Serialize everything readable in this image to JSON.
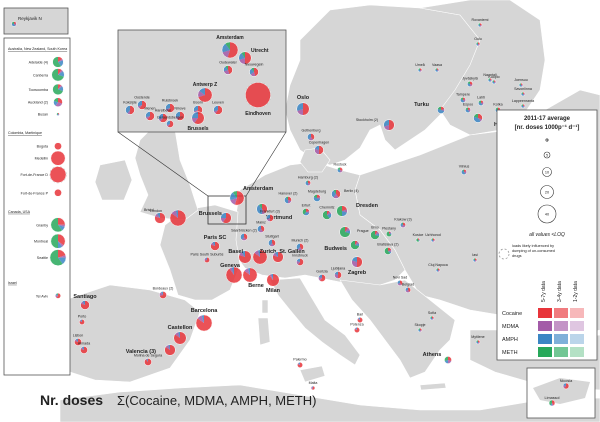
{
  "title": {
    "bold": "Nr. doses",
    "formula": "Σ(Cocaine, MDMA, AMPH, METH)"
  },
  "colors": {
    "sea": "#ffffff",
    "land": "#d6d6d6",
    "border": "#ffffff",
    "cocaine": "#e8343a",
    "mdma": "#a35ba8",
    "amph": "#3b86c4",
    "meth": "#27a85a"
  },
  "legend": {
    "title_line1": "2011-17 average",
    "title_line2": "[nr. doses 1000p⁻¹ d⁻¹]",
    "size_values": [
      "1",
      "5",
      "10",
      "20",
      "40"
    ],
    "loq_label": "all values <LOQ",
    "dumping_label": "loads likely influenced by dumping of un-consumed drugs",
    "period_labels": [
      "5-7y data",
      "3-4y data",
      "1-2y data"
    ],
    "drugs": [
      "Cocaine",
      "MDMA",
      "AMPH",
      "METH"
    ]
  },
  "inset_left": {
    "groups": [
      {
        "heading": "Australia, New Zealand, South Korea",
        "cities": [
          {
            "name": "Adelaide (4)",
            "size": 6,
            "parts": [
              0.15,
              0.05,
              0.2,
              0.6
            ]
          },
          {
            "name": "Canberra",
            "size": 7,
            "parts": [
              0.1,
              0.05,
              0.15,
              0.7
            ]
          },
          {
            "name": "Toowoomba",
            "size": 6,
            "parts": [
              0.1,
              0.05,
              0.15,
              0.7
            ]
          },
          {
            "name": "Auckland (2)",
            "size": 5,
            "parts": [
              0.3,
              0.3,
              0.2,
              0.2
            ]
          },
          {
            "name": "Busan",
            "size": 1.5,
            "parts": [
              0.2,
              0.2,
              0.3,
              0.3
            ]
          }
        ]
      },
      {
        "heading": "Colombia, Martinique",
        "cities": [
          {
            "name": "Bogota",
            "size": 4,
            "parts": [
              1,
              0,
              0,
              0
            ]
          },
          {
            "name": "Medellin",
            "size": 8,
            "parts": [
              1,
              0,
              0,
              0
            ]
          },
          {
            "name": "Fort-de-France D",
            "size": 9,
            "parts": [
              1,
              0,
              0,
              0
            ],
            "dashed": true
          },
          {
            "name": "Fort-de-France P",
            "size": 4,
            "parts": [
              1,
              0,
              0,
              0
            ]
          }
        ]
      },
      {
        "heading": "Canada, USA",
        "cities": [
          {
            "name": "Granby",
            "size": 8,
            "parts": [
              0.25,
              0.05,
              0.1,
              0.6
            ]
          },
          {
            "name": "Montreal",
            "size": 8,
            "parts": [
              0.35,
              0.05,
              0.1,
              0.5
            ]
          },
          {
            "name": "Seattle",
            "size": 9,
            "parts": [
              0.2,
              0.05,
              0.15,
              0.6
            ]
          }
        ]
      },
      {
        "heading": "Israel",
        "cities": [
          {
            "name": "Tel Aviv",
            "size": 3,
            "parts": [
              0.6,
              0.2,
              0.1,
              0.1
            ]
          }
        ]
      }
    ]
  },
  "inset_reykjavik": {
    "city": "Reykjavik N"
  },
  "inset_benelux": {
    "cities": [
      {
        "name": "Amsterdam",
        "size": 9,
        "parts": [
          0.55,
          0.15,
          0.2,
          0.1
        ]
      },
      {
        "name": "Utrecht",
        "size": 7,
        "parts": [
          0.5,
          0.2,
          0.2,
          0.1
        ]
      },
      {
        "name": "Oudewater",
        "size": 5,
        "parts": [
          0.45,
          0.25,
          0.2,
          0.1
        ]
      },
      {
        "name": "Nieuwegein",
        "size": 5,
        "parts": [
          0.45,
          0.2,
          0.25,
          0.1
        ]
      },
      {
        "name": "Antwerp Z",
        "size": 8,
        "parts": [
          0.7,
          0.15,
          0.15,
          0
        ]
      },
      {
        "name": "Eindhoven",
        "size": 14,
        "parts": [
          0.1,
          0,
          0,
          0
        ],
        "dashed": true
      },
      {
        "name": "Oostende",
        "size": 5,
        "parts": [
          0.6,
          0.1,
          0.3,
          0
        ]
      },
      {
        "name": "Koksijde",
        "size": 5,
        "parts": [
          0.5,
          0.1,
          0.4,
          0
        ]
      },
      {
        "name": "Ruisbroek",
        "size": 5,
        "parts": [
          0.6,
          0.1,
          0.3,
          0
        ]
      },
      {
        "name": "Menen",
        "size": 5,
        "parts": [
          0.6,
          0.1,
          0.3,
          0
        ]
      },
      {
        "name": "Harelbeke",
        "size": 5,
        "parts": [
          0.6,
          0.1,
          0.3,
          0
        ]
      },
      {
        "name": "Ninove",
        "size": 5,
        "parts": [
          0.6,
          0.1,
          0.3,
          0
        ]
      },
      {
        "name": "Boom",
        "size": 5,
        "parts": [
          0.6,
          0.1,
          0.3,
          0
        ]
      },
      {
        "name": "Leuven",
        "size": 5,
        "parts": [
          0.6,
          0.1,
          0.3,
          0
        ]
      },
      {
        "name": "Geraardsbergen",
        "size": 4,
        "parts": [
          0.6,
          0.1,
          0.3,
          0
        ]
      },
      {
        "name": "Brussels",
        "size": 7,
        "parts": [
          0.6,
          0.15,
          0.25,
          0
        ]
      }
    ]
  },
  "inset_cyprus": {
    "cities": [
      {
        "name": "Nicosia",
        "size": 3,
        "parts": [
          0.6,
          0.2,
          0.2,
          0
        ]
      },
      {
        "name": "Limassol",
        "size": 3,
        "parts": [
          0.4,
          0.1,
          0.1,
          0.4
        ]
      }
    ]
  },
  "cities": [
    {
      "name": "Rovaniemi",
      "size": 2,
      "parts": [
        0.3,
        0.2,
        0.3,
        0.2
      ]
    },
    {
      "name": "Oulu",
      "size": 2,
      "parts": [
        0.3,
        0.2,
        0.3,
        0.2
      ]
    },
    {
      "name": "Umeå",
      "size": 2,
      "parts": [
        0.3,
        0.2,
        0.3,
        0.2
      ]
    },
    {
      "name": "Vaasa",
      "size": 2,
      "parts": [
        0.2,
        0.2,
        0.4,
        0.2
      ]
    },
    {
      "name": "Jyväskylä",
      "size": 3,
      "parts": [
        0.3,
        0.2,
        0.3,
        0.2
      ]
    },
    {
      "name": "Naantali",
      "size": 2,
      "parts": [
        0.2,
        0.2,
        0.4,
        0.2
      ]
    },
    {
      "name": "Joensuu",
      "size": 2,
      "parts": [
        0.2,
        0.2,
        0.4,
        0.2
      ]
    },
    {
      "name": "Savonlinna",
      "size": 2,
      "parts": [
        0.2,
        0.2,
        0.4,
        0.2
      ]
    },
    {
      "name": "Kuopio",
      "size": 2,
      "parts": [
        0.2,
        0.2,
        0.4,
        0.2
      ]
    },
    {
      "name": "Tampere",
      "size": 3,
      "parts": [
        0.2,
        0.2,
        0.4,
        0.2
      ]
    },
    {
      "name": "Lahti",
      "size": 3,
      "parts": [
        0.2,
        0.2,
        0.4,
        0.2
      ]
    },
    {
      "name": "Lappeenranta",
      "size": 2,
      "parts": [
        0.2,
        0.2,
        0.4,
        0.2
      ]
    },
    {
      "name": "Espoo",
      "size": 3,
      "parts": [
        0.2,
        0.2,
        0.4,
        0.2
      ]
    },
    {
      "name": "Kotka",
      "size": 3,
      "parts": [
        0.2,
        0.2,
        0.4,
        0.2
      ]
    },
    {
      "name": "Turku",
      "size": 4,
      "parts": [
        0.2,
        0.1,
        0.5,
        0.2
      ]
    },
    {
      "name": "Helsinki",
      "size": 5,
      "parts": [
        0.3,
        0.1,
        0.4,
        0.2
      ]
    },
    {
      "name": "Oslo",
      "size": 7,
      "parts": [
        0.5,
        0.2,
        0.3,
        0
      ]
    },
    {
      "name": "Stockholm (2)",
      "size": 6,
      "parts": [
        0.5,
        0.2,
        0.3,
        0
      ]
    },
    {
      "name": "Gothenburg",
      "size": 4,
      "parts": [
        0.4,
        0.2,
        0.4,
        0
      ]
    },
    {
      "name": "Copenhagen",
      "size": 5,
      "parts": [
        0.5,
        0.3,
        0.2,
        0
      ]
    },
    {
      "name": "Rostock",
      "size": 3,
      "parts": [
        0.3,
        0.2,
        0.3,
        0.2
      ]
    },
    {
      "name": "Vilnius",
      "size": 3,
      "parts": [
        0.2,
        0.2,
        0.5,
        0.1
      ]
    },
    {
      "name": "Amsterdam",
      "size": 8,
      "parts": [
        0.55,
        0.15,
        0.2,
        0.1
      ]
    },
    {
      "name": "Brussels",
      "size": 6,
      "parts": [
        0.6,
        0.15,
        0.25,
        0
      ]
    },
    {
      "name": "Bristol",
      "size": 6,
      "parts": [
        0.8,
        0.1,
        0.1,
        0
      ]
    },
    {
      "name": "London",
      "size": 9,
      "parts": [
        0.85,
        0.1,
        0.05,
        0
      ]
    },
    {
      "name": "Hamburg (2)",
      "size": 3,
      "parts": [
        0.3,
        0.2,
        0.4,
        0.1
      ]
    },
    {
      "name": "Hanover (2)",
      "size": 4,
      "parts": [
        0.3,
        0.2,
        0.4,
        0.1
      ]
    },
    {
      "name": "Magdeburg",
      "size": 4,
      "parts": [
        0.2,
        0.1,
        0.5,
        0.2
      ]
    },
    {
      "name": "Berlin (4)",
      "size": 5,
      "parts": [
        0.4,
        0.2,
        0.3,
        0.1
      ]
    },
    {
      "name": "Dortmund",
      "size": 6,
      "parts": [
        0.4,
        0.1,
        0.4,
        0.1
      ]
    },
    {
      "name": "Erfurt",
      "size": 4,
      "parts": [
        0.2,
        0.1,
        0.3,
        0.4
      ]
    },
    {
      "name": "Dresden",
      "size": 6,
      "parts": [
        0.2,
        0.1,
        0.2,
        0.5
      ]
    },
    {
      "name": "Chemnitz",
      "size": 5,
      "parts": [
        0.1,
        0.1,
        0.2,
        0.6
      ]
    },
    {
      "name": "Frankfurt (3)",
      "size": 4,
      "parts": [
        0.5,
        0.2,
        0.3,
        0
      ]
    },
    {
      "name": "Mainz",
      "size": 4,
      "parts": [
        0.4,
        0.2,
        0.4,
        0
      ]
    },
    {
      "name": "Saarbrücken (2)",
      "size": 4,
      "parts": [
        0.4,
        0.2,
        0.4,
        0
      ]
    },
    {
      "name": "Stuttgart",
      "size": 4,
      "parts": [
        0.4,
        0.2,
        0.4,
        0
      ]
    },
    {
      "name": "Munich (2)",
      "size": 4,
      "parts": [
        0.4,
        0.2,
        0.4,
        0
      ]
    },
    {
      "name": "Paris SC",
      "size": 5,
      "parts": [
        0.8,
        0.1,
        0.1,
        0
      ]
    },
    {
      "name": "Paris South Suburbs",
      "size": 3,
      "parts": [
        0.7,
        0.2,
        0.1,
        0
      ]
    },
    {
      "name": "Bordeaux (2)",
      "size": 4,
      "parts": [
        0.7,
        0.2,
        0.1,
        0
      ]
    },
    {
      "name": "Basel",
      "size": 7,
      "parts": [
        0.8,
        0.1,
        0.1,
        0
      ]
    },
    {
      "name": "Zurich",
      "size": 8,
      "parts": [
        0.85,
        0.1,
        0.05,
        0
      ]
    },
    {
      "name": "St. Gallen",
      "size": 6,
      "parts": [
        0.8,
        0.1,
        0.1,
        0
      ]
    },
    {
      "name": "Geneva",
      "size": 9,
      "parts": [
        0.9,
        0.05,
        0.05,
        0
      ]
    },
    {
      "name": "Berne",
      "size": 8,
      "parts": [
        0.85,
        0.1,
        0.05,
        0
      ]
    },
    {
      "name": "Innsbruck",
      "size": 4,
      "parts": [
        0.6,
        0.2,
        0.2,
        0
      ]
    },
    {
      "name": "Milan",
      "size": 7,
      "parts": [
        0.9,
        0.05,
        0.05,
        0
      ]
    },
    {
      "name": "Gorizia",
      "size": 4,
      "parts": [
        0.6,
        0.2,
        0.2,
        0
      ]
    },
    {
      "name": "Ljubljana",
      "size": 4,
      "parts": [
        0.5,
        0.3,
        0.2,
        0
      ]
    },
    {
      "name": "Prague",
      "size": 6,
      "parts": [
        0.1,
        0.1,
        0.1,
        0.7
      ]
    },
    {
      "name": "Brno",
      "size": 5,
      "parts": [
        0.1,
        0.1,
        0.1,
        0.7
      ]
    },
    {
      "name": "Budweis",
      "size": 5,
      "parts": [
        0.1,
        0.1,
        0.1,
        0.7
      ]
    },
    {
      "name": "Krakow (3)",
      "size": 3,
      "parts": [
        0.3,
        0.3,
        0.3,
        0.1
      ]
    },
    {
      "name": "Piestany",
      "size": 3,
      "parts": [
        0.1,
        0.1,
        0.1,
        0.7
      ]
    },
    {
      "name": "Bratislava (2)",
      "size": 4,
      "parts": [
        0.2,
        0.1,
        0.1,
        0.6
      ]
    },
    {
      "name": "Kosice",
      "size": 2,
      "parts": [
        0.2,
        0.1,
        0.1,
        0.6
      ]
    },
    {
      "name": "Uzhhorod",
      "size": 1.5,
      "parts": [
        0.3,
        0.2,
        0.3,
        0.2
      ]
    },
    {
      "name": "Zagreb",
      "size": 6,
      "parts": [
        0.5,
        0.3,
        0.2,
        0
      ]
    },
    {
      "name": "Novi Sad",
      "size": 3,
      "parts": [
        0.4,
        0.3,
        0.3,
        0
      ]
    },
    {
      "name": "Belgrad",
      "size": 3,
      "parts": [
        0.4,
        0.3,
        0.3,
        0
      ]
    },
    {
      "name": "Cluj Napoca",
      "size": 2,
      "parts": [
        0.3,
        0.2,
        0.3,
        0.2
      ]
    },
    {
      "name": "Iasi",
      "size": 2,
      "parts": [
        0.3,
        0.2,
        0.3,
        0.2
      ]
    },
    {
      "name": "Sofia",
      "size": 2,
      "parts": [
        0.3,
        0.2,
        0.3,
        0.2
      ]
    },
    {
      "name": "Skopje",
      "size": 2,
      "parts": [
        0.3,
        0.2,
        0.3,
        0.2
      ]
    },
    {
      "name": "Mytilene",
      "size": 2,
      "parts": [
        0.3,
        0.2,
        0.3,
        0.2
      ]
    },
    {
      "name": "Athens",
      "size": 4,
      "parts": [
        0.3,
        0.2,
        0.2,
        0.3
      ]
    },
    {
      "name": "Bari",
      "size": 3,
      "parts": [
        0.8,
        0.1,
        0.1,
        0
      ]
    },
    {
      "name": "Potenza",
      "size": 3,
      "parts": [
        0.8,
        0.1,
        0.1,
        0
      ]
    },
    {
      "name": "Palermo",
      "size": 3,
      "parts": [
        0.8,
        0.1,
        0.1,
        0
      ]
    },
    {
      "name": "Malta",
      "size": 2,
      "parts": [
        0.6,
        0.3,
        0.1,
        0
      ]
    },
    {
      "name": "Santiago",
      "size": 5,
      "parts": [
        0.8,
        0.1,
        0.1,
        0
      ]
    },
    {
      "name": "Porto",
      "size": 3,
      "parts": [
        0.8,
        0.1,
        0.1,
        0
      ]
    },
    {
      "name": "Lisbon",
      "size": 4,
      "parts": [
        0.8,
        0.1,
        0.1,
        0
      ]
    },
    {
      "name": "Almada",
      "size": 4,
      "parts": [
        0.8,
        0.1,
        0.1,
        0
      ]
    },
    {
      "name": "Barcelona",
      "size": 9,
      "parts": [
        0.85,
        0.1,
        0.05,
        0
      ]
    },
    {
      "name": "Castellon",
      "size": 7,
      "parts": [
        0.85,
        0.1,
        0.05,
        0
      ]
    },
    {
      "name": "Valencia (3)",
      "size": 6,
      "parts": [
        0.85,
        0.1,
        0.05,
        0
      ]
    },
    {
      "name": "Molina de Segura",
      "size": 4,
      "parts": [
        0.9,
        0.05,
        0.05,
        0
      ]
    }
  ]
}
